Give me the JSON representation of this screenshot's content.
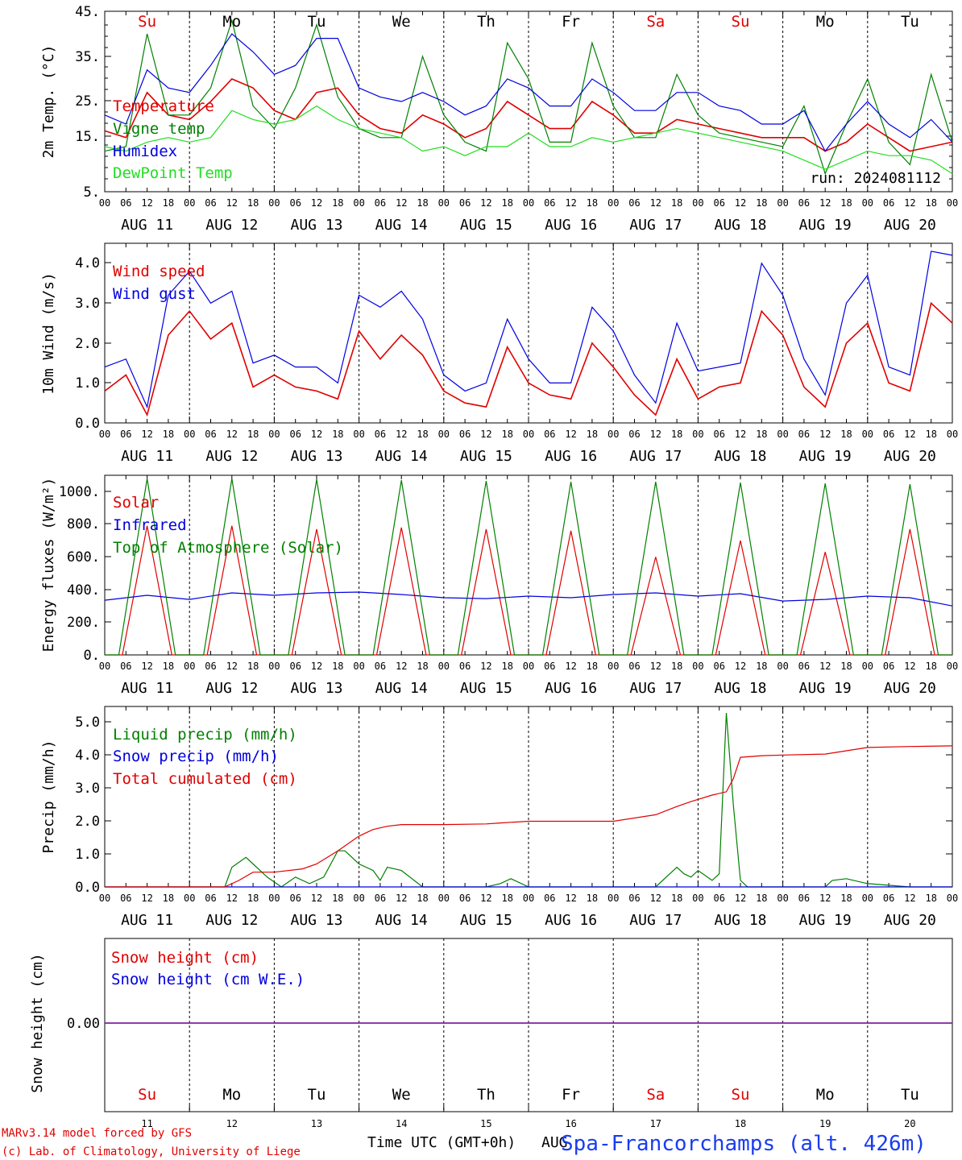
{
  "footer": {
    "model_line": "MARv3.14 model forced by GFS",
    "credit_line": "(c) Lab. of Climatology, University of Liege",
    "time_axis_label": "Time UTC (GMT+0h)",
    "month_label": "AUG",
    "station": "Spa-Francorchamps (alt. 426m)"
  },
  "run_label": "run: 2024081112",
  "day_names": [
    "Su",
    "Mo",
    "Tu",
    "We",
    "Th",
    "Fr",
    "Sa",
    "Su",
    "Mo",
    "Tu"
  ],
  "day_name_colors": [
    "#e00000",
    "#000000",
    "#000000",
    "#000000",
    "#000000",
    "#000000",
    "#e00000",
    "#e00000",
    "#000000",
    "#000000"
  ],
  "date_labels": [
    "AUG 11",
    "AUG 12",
    "AUG 13",
    "AUG 14",
    "AUG 15",
    "AUG 16",
    "AUG 17",
    "AUG 18",
    "AUG 19",
    "AUG 20"
  ],
  "day_numbers": [
    "11",
    "12",
    "13",
    "14",
    "15",
    "16",
    "17",
    "18",
    "19",
    "20"
  ],
  "hour_ticks": [
    "00",
    "06",
    "12",
    "18"
  ],
  "chart_data": [
    {
      "type": "line",
      "ylabel": "2m Temp. (°C)",
      "ylim": [
        5,
        45
      ],
      "yticks": [
        "5.",
        "15.",
        "25.",
        "35.",
        "45."
      ],
      "x_unit": "hours since AUG 11 00 UTC",
      "series": [
        {
          "name": "Temperature",
          "color": "#e00000",
          "x": [
            0,
            6,
            12,
            18,
            24,
            30,
            36,
            42,
            48,
            54,
            60,
            66,
            72,
            78,
            84,
            90,
            96,
            102,
            108,
            114,
            120,
            126,
            132,
            138,
            144,
            150,
            156,
            162,
            168,
            174,
            180,
            186,
            192,
            198,
            204,
            210,
            216,
            222,
            228,
            234,
            240
          ],
          "values": [
            18.5,
            17,
            27,
            22,
            21,
            25,
            30,
            28,
            23,
            21,
            27,
            28,
            22,
            19,
            18,
            22,
            20,
            17,
            19,
            25,
            22,
            19,
            19,
            25,
            22,
            18,
            18,
            21,
            20,
            19,
            18,
            17,
            17,
            17,
            14,
            16,
            20,
            17,
            14,
            15,
            16
          ]
        },
        {
          "name": "Vigne temp",
          "color": "#008000",
          "x": [
            0,
            6,
            12,
            18,
            24,
            30,
            36,
            42,
            48,
            54,
            60,
            66,
            72,
            78,
            84,
            90,
            96,
            102,
            108,
            114,
            120,
            126,
            132,
            138,
            144,
            150,
            156,
            162,
            168,
            174,
            180,
            186,
            192,
            198,
            204,
            210,
            216,
            222,
            228,
            234,
            240
          ],
          "values": [
            14,
            15,
            40,
            22,
            22,
            28,
            43,
            24,
            19,
            28,
            42,
            26,
            19,
            17,
            17,
            35,
            22,
            16,
            14,
            38,
            30,
            16,
            16,
            38,
            24,
            17,
            17,
            31,
            22,
            18,
            17,
            16,
            15,
            24,
            9,
            20,
            30,
            16,
            11,
            31,
            16
          ]
        },
        {
          "name": "Humidex",
          "color": "#0000e0",
          "x": [
            0,
            6,
            12,
            18,
            24,
            30,
            36,
            42,
            48,
            54,
            60,
            66,
            72,
            78,
            84,
            90,
            96,
            102,
            108,
            114,
            120,
            126,
            132,
            138,
            144,
            150,
            156,
            162,
            168,
            174,
            180,
            186,
            192,
            198,
            204,
            210,
            216,
            222,
            228,
            234,
            240
          ],
          "values": [
            22,
            20,
            32,
            28,
            27,
            33,
            40,
            36,
            31,
            33,
            39,
            39,
            28,
            26,
            25,
            27,
            25,
            22,
            24,
            30,
            28,
            24,
            24,
            30,
            27,
            23,
            23,
            27,
            27,
            24,
            23,
            20,
            20,
            23,
            14,
            20,
            25,
            20,
            17,
            21,
            16
          ]
        },
        {
          "name": "DewPoint Temp",
          "color": "#22dd22",
          "x": [
            0,
            6,
            12,
            18,
            24,
            30,
            36,
            42,
            48,
            54,
            60,
            66,
            72,
            78,
            84,
            90,
            96,
            102,
            108,
            114,
            120,
            126,
            132,
            138,
            144,
            150,
            156,
            162,
            168,
            174,
            180,
            186,
            192,
            198,
            204,
            210,
            216,
            222,
            228,
            234,
            240
          ],
          "values": [
            15,
            14,
            16,
            17,
            16,
            17,
            23,
            21,
            20,
            21,
            24,
            21,
            19,
            18,
            17,
            14,
            15,
            13,
            15,
            15,
            18,
            15,
            15,
            17,
            16,
            17,
            18,
            19,
            18,
            17,
            16,
            15,
            14,
            12,
            10,
            12,
            14,
            13,
            13,
            12,
            9
          ]
        }
      ]
    },
    {
      "type": "line",
      "ylabel": "10m Wind (m/s)",
      "ylim": [
        0,
        4.5
      ],
      "yticks": [
        "0.0",
        "1.0",
        "2.0",
        "3.0",
        "4.0"
      ],
      "series": [
        {
          "name": "Wind speed",
          "color": "#e00000",
          "x": [
            0,
            6,
            12,
            18,
            24,
            30,
            36,
            42,
            48,
            54,
            60,
            66,
            72,
            78,
            84,
            90,
            96,
            102,
            108,
            114,
            120,
            126,
            132,
            138,
            144,
            150,
            156,
            162,
            168,
            174,
            180,
            186,
            192,
            198,
            204,
            210,
            216,
            222,
            228,
            234,
            240
          ],
          "values": [
            0.8,
            1.2,
            0.2,
            2.2,
            2.8,
            2.1,
            2.5,
            0.9,
            1.2,
            0.9,
            0.8,
            0.6,
            2.3,
            1.6,
            2.2,
            1.7,
            0.8,
            0.5,
            0.4,
            1.9,
            1.0,
            0.7,
            0.6,
            2.0,
            1.4,
            0.7,
            0.2,
            1.6,
            0.6,
            0.9,
            1.0,
            2.8,
            2.2,
            0.9,
            0.4,
            2.0,
            2.5,
            1.0,
            0.8,
            3.0,
            2.5
          ]
        },
        {
          "name": "Wind gust",
          "color": "#0000e0",
          "x": [
            0,
            6,
            12,
            18,
            24,
            30,
            36,
            42,
            48,
            54,
            60,
            66,
            72,
            78,
            84,
            90,
            96,
            102,
            108,
            114,
            120,
            126,
            132,
            138,
            144,
            150,
            156,
            162,
            168,
            174,
            180,
            186,
            192,
            198,
            204,
            210,
            216,
            222,
            228,
            234,
            240
          ],
          "values": [
            1.4,
            1.6,
            0.4,
            3.2,
            3.8,
            3.0,
            3.3,
            1.5,
            1.7,
            1.4,
            1.4,
            1.0,
            3.2,
            2.9,
            3.3,
            2.6,
            1.2,
            0.8,
            1.0,
            2.6,
            1.6,
            1.0,
            1.0,
            2.9,
            2.3,
            1.2,
            0.5,
            2.5,
            1.3,
            1.4,
            1.5,
            4.0,
            3.2,
            1.6,
            0.7,
            3.0,
            3.7,
            1.4,
            1.2,
            4.3,
            4.2
          ]
        }
      ]
    },
    {
      "type": "line",
      "ylabel": "Energy fluxes (W/m²)",
      "ylim": [
        0,
        1100
      ],
      "yticks": [
        "0.",
        "200.",
        "400.",
        "600.",
        "800.",
        "1000."
      ],
      "series": [
        {
          "name": "Solar",
          "color": "#e00000",
          "x": [
            0,
            5,
            12,
            19,
            24,
            29,
            36,
            43,
            48,
            53,
            60,
            67,
            72,
            77,
            84,
            91,
            96,
            101,
            108,
            115,
            120,
            125,
            132,
            139,
            144,
            149,
            156,
            163,
            168,
            173,
            180,
            187,
            192,
            197,
            204,
            211,
            216,
            221,
            228,
            235,
            240
          ],
          "values": [
            0,
            0,
            790,
            0,
            0,
            0,
            790,
            0,
            0,
            0,
            770,
            0,
            0,
            0,
            780,
            0,
            0,
            0,
            770,
            0,
            0,
            0,
            760,
            0,
            0,
            0,
            600,
            0,
            0,
            0,
            700,
            0,
            0,
            0,
            630,
            0,
            0,
            0,
            770,
            0,
            0
          ]
        },
        {
          "name": "Infrared",
          "color": "#0000e0",
          "x": [
            0,
            12,
            24,
            36,
            48,
            60,
            72,
            84,
            96,
            108,
            120,
            132,
            144,
            156,
            168,
            180,
            192,
            204,
            216,
            228,
            240
          ],
          "values": [
            335,
            365,
            340,
            380,
            365,
            380,
            385,
            370,
            350,
            345,
            360,
            350,
            370,
            380,
            360,
            375,
            330,
            340,
            360,
            350,
            300
          ]
        },
        {
          "name": "Top of Atmosphere (Solar)",
          "color": "#008000",
          "x": [
            0,
            4,
            12,
            20,
            24,
            28,
            36,
            44,
            48,
            52,
            60,
            68,
            72,
            76,
            84,
            92,
            96,
            100,
            108,
            116,
            120,
            124,
            132,
            140,
            144,
            148,
            156,
            164,
            168,
            172,
            180,
            188,
            192,
            196,
            204,
            212,
            216,
            220,
            228,
            236,
            240
          ],
          "values": [
            0,
            0,
            1080,
            0,
            0,
            0,
            1080,
            0,
            0,
            0,
            1075,
            0,
            0,
            0,
            1070,
            0,
            0,
            0,
            1065,
            0,
            0,
            0,
            1060,
            0,
            0,
            0,
            1060,
            0,
            0,
            0,
            1055,
            0,
            0,
            0,
            1050,
            0,
            0,
            0,
            1045,
            0,
            0
          ]
        }
      ]
    },
    {
      "type": "line",
      "ylabel": "Precip (mm/h)",
      "ylim": [
        0,
        5.5
      ],
      "yticks": [
        "0.0",
        "1.0",
        "2.0",
        "3.0",
        "4.0",
        "5.0"
      ],
      "series": [
        {
          "name": "Liquid precip (mm/h)",
          "color": "#008000",
          "x": [
            0,
            34,
            36,
            40,
            42,
            46,
            50,
            54,
            58,
            62,
            66,
            68,
            72,
            76,
            78,
            80,
            84,
            90,
            96,
            108,
            112,
            115,
            120,
            138,
            144,
            156,
            162,
            164,
            166,
            168,
            172,
            174,
            176,
            178,
            180,
            182,
            184,
            192,
            204,
            206,
            210,
            216,
            228,
            240
          ],
          "values": [
            0,
            0,
            0.6,
            0.9,
            0.7,
            0.3,
            0,
            0.3,
            0.1,
            0.3,
            1.1,
            1.1,
            0.7,
            0.5,
            0.2,
            0.6,
            0.5,
            0,
            0,
            0,
            0.1,
            0.25,
            0,
            0,
            0,
            0,
            0.6,
            0.4,
            0.3,
            0.5,
            0.2,
            0.4,
            5.3,
            2.5,
            0.2,
            0,
            0,
            0,
            0,
            0.2,
            0.25,
            0.1,
            0,
            0
          ]
        },
        {
          "name": "Snow precip (mm/h)",
          "color": "#0000e0",
          "x": [
            0,
            240
          ],
          "values": [
            0,
            0
          ]
        },
        {
          "name": "Total cumulated (cm)",
          "color": "#e00000",
          "x": [
            0,
            34,
            38,
            42,
            48,
            56,
            60,
            66,
            72,
            76,
            80,
            84,
            90,
            96,
            108,
            112,
            120,
            138,
            144,
            156,
            162,
            166,
            172,
            176,
            178,
            180,
            186,
            192,
            204,
            210,
            216,
            228,
            240
          ],
          "values": [
            0,
            0,
            0.2,
            0.45,
            0.45,
            0.55,
            0.7,
            1.1,
            1.55,
            1.75,
            1.85,
            1.9,
            1.9,
            1.9,
            1.92,
            1.95,
            2.0,
            2.0,
            2.0,
            2.2,
            2.45,
            2.6,
            2.8,
            2.9,
            3.3,
            3.95,
            4.0,
            4.02,
            4.05,
            4.15,
            4.25,
            4.28,
            4.3
          ]
        }
      ]
    },
    {
      "type": "line",
      "ylabel": "Snow height (cm)",
      "yticks": [
        "0.00"
      ],
      "series": [
        {
          "name": "Snow height (cm)",
          "color": "#e00000",
          "x": [
            0,
            240
          ],
          "values": [
            0,
            0
          ]
        },
        {
          "name": "Snow height (cm W.E.)",
          "color": "#0000e0",
          "x": [
            0,
            240
          ],
          "values": [
            0,
            0
          ]
        }
      ]
    }
  ]
}
